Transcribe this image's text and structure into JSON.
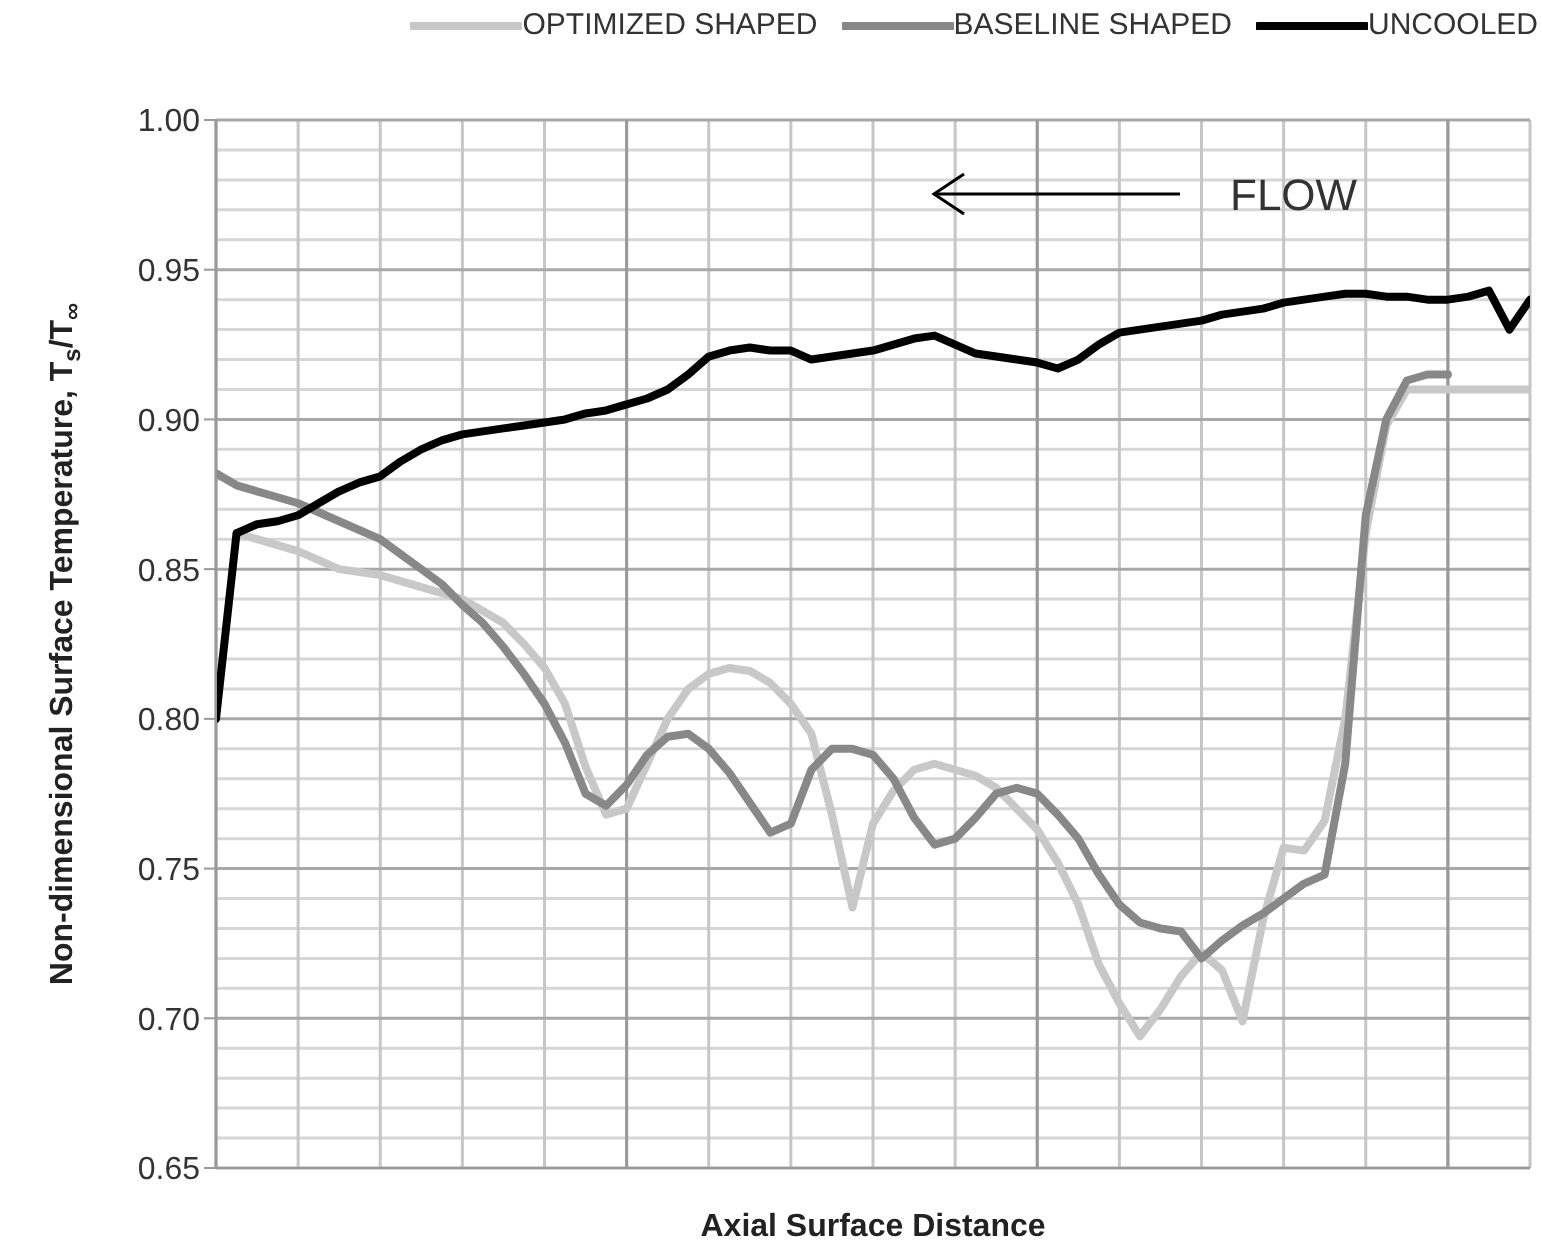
{
  "chart_data": {
    "type": "line",
    "xlabel": "Axial Surface Distance",
    "ylabel": "Non-dimensional Surface Temperature, T$_{s}$/T$_{∞}$",
    "categories": [
      null,
      null,
      null,
      null,
      null,
      null,
      null,
      null,
      null,
      null,
      null,
      null,
      null,
      null,
      null,
      null,
      null,
      null,
      null,
      null,
      null,
      null,
      null,
      null,
      null,
      null,
      null,
      null,
      null,
      null,
      null,
      null,
      null,
      null,
      null,
      null,
      null,
      null,
      null,
      null,
      null,
      null,
      null,
      null,
      null,
      null,
      null,
      null,
      null,
      null,
      null,
      null,
      null,
      null,
      null,
      null,
      null,
      null,
      null,
      null,
      null,
      null,
      null,
      null,
      null
    ],
    "series": [
      {
        "name": "OPTIMIZED SHAPED",
        "color": "#c8c8c8",
        "values": [
          null,
          0.862,
          0.86,
          0.858,
          0.856,
          0.853,
          0.85,
          0.849,
          0.848,
          0.846,
          0.844,
          0.842,
          0.84,
          0.836,
          0.832,
          0.825,
          0.817,
          0.805,
          0.784,
          0.768,
          0.77,
          0.785,
          0.8,
          0.81,
          0.815,
          0.817,
          0.816,
          0.812,
          0.805,
          0.795,
          0.768,
          0.737,
          0.765,
          0.776,
          0.783,
          0.785,
          0.783,
          0.781,
          0.777,
          0.77,
          0.763,
          0.752,
          0.738,
          0.718,
          0.705,
          0.694,
          0.703,
          0.714,
          0.722,
          0.716,
          0.699,
          0.733,
          0.757,
          0.756,
          0.766,
          0.8,
          0.862,
          0.898,
          0.91,
          0.91,
          0.91,
          0.91,
          0.91,
          0.91,
          0.91
        ]
      },
      {
        "name": "BASELINE SHAPED",
        "color": "#888888",
        "values": [
          0.882,
          0.878,
          0.876,
          0.874,
          0.872,
          0.869,
          0.866,
          0.863,
          0.86,
          0.855,
          0.85,
          0.845,
          0.838,
          0.832,
          0.824,
          0.815,
          0.805,
          0.792,
          0.775,
          0.771,
          0.778,
          0.788,
          0.794,
          0.795,
          0.79,
          0.782,
          0.772,
          0.762,
          0.765,
          0.783,
          0.79,
          0.79,
          0.788,
          0.78,
          0.767,
          0.758,
          0.76,
          0.767,
          0.775,
          0.777,
          0.775,
          0.768,
          0.76,
          0.748,
          0.738,
          0.732,
          0.73,
          0.729,
          0.72,
          0.726,
          0.731,
          0.735,
          0.74,
          0.745,
          0.748,
          0.785,
          0.868,
          0.9,
          0.913,
          0.915,
          0.915,
          null,
          null,
          null,
          null
        ]
      },
      {
        "name": "UNCOOLED",
        "color": "#000000",
        "values": [
          0.8,
          0.862,
          0.865,
          0.866,
          0.868,
          0.872,
          0.876,
          0.879,
          0.881,
          0.886,
          0.89,
          0.893,
          0.895,
          0.896,
          0.897,
          0.898,
          0.899,
          0.9,
          0.902,
          0.903,
          0.905,
          0.907,
          0.91,
          0.915,
          0.921,
          0.923,
          0.924,
          0.923,
          0.923,
          0.92,
          0.921,
          0.922,
          0.923,
          0.925,
          0.927,
          0.928,
          0.925,
          0.922,
          0.921,
          0.92,
          0.919,
          0.917,
          0.92,
          0.925,
          0.929,
          0.93,
          0.931,
          0.932,
          0.933,
          0.935,
          0.936,
          0.937,
          0.939,
          0.94,
          0.941,
          0.942,
          0.942,
          0.941,
          0.941,
          0.94,
          0.94,
          0.941,
          0.943,
          0.93,
          0.94
        ]
      }
    ],
    "ylim": [
      0.65,
      1.0
    ],
    "yticks": [
      0.65,
      {
        "value": 0.7,
        "label": "0.70"
      },
      0.75,
      {
        "value": 0.8,
        "label": "0.80"
      },
      0.85,
      {
        "value": 0.9,
        "label": "0.90"
      },
      0.95,
      {
        "value": 1,
        "label": "1.00"
      }
    ],
    "grid": true,
    "legend": "top",
    "marker": "none",
    "line_style": "solid",
    "annotations": [
      "FLOW"
    ]
  }
}
